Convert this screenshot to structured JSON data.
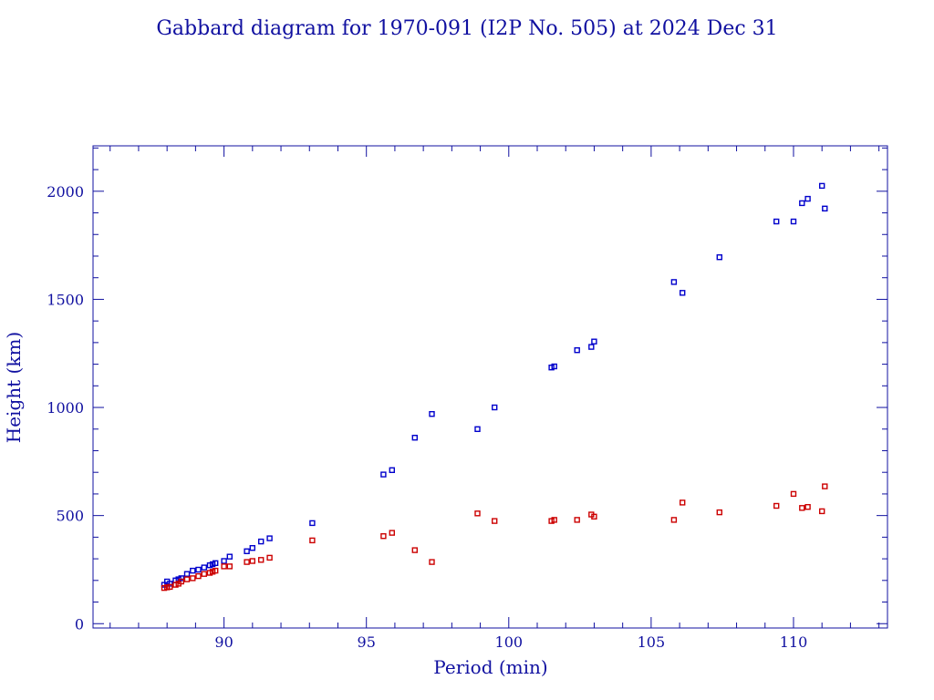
{
  "chart_data": {
    "type": "scatter",
    "title": "Gabbard diagram for 1970-091 (I2P No. 505) at 2024 Dec 31",
    "xlabel": "Period (min)",
    "ylabel": "Height (km)",
    "xlim": [
      85.4,
      113.3
    ],
    "ylim": [
      -20,
      2210
    ],
    "x_major_ticks": [
      90,
      95,
      100,
      105,
      110
    ],
    "x_minor_step": 1,
    "y_major_ticks": [
      0,
      500,
      1000,
      1500,
      2000
    ],
    "y_minor_step": 100,
    "grid": false,
    "series": [
      {
        "role": "apogee",
        "color": "#0000cc",
        "x": [
          87.9,
          88.0,
          88.1,
          88.3,
          88.4,
          88.5,
          88.7,
          88.9,
          89.1,
          89.3,
          89.5,
          89.6,
          89.7,
          90.0,
          90.2,
          90.8,
          91.0,
          91.3,
          91.6,
          93.1,
          95.6,
          95.9,
          96.7,
          97.3,
          98.9,
          99.5,
          101.5,
          101.6,
          102.4,
          102.9,
          103.0,
          105.8,
          106.1,
          107.4,
          109.4,
          110.0,
          110.3,
          110.5,
          111.0,
          111.1
        ],
        "y": [
          180,
          195,
          185,
          200,
          205,
          210,
          230,
          245,
          250,
          260,
          270,
          275,
          280,
          290,
          310,
          335,
          350,
          380,
          395,
          465,
          690,
          710,
          860,
          970,
          900,
          1000,
          1185,
          1190,
          1265,
          1280,
          1305,
          1580,
          1530,
          1695,
          1860,
          1860,
          1945,
          1965,
          2025,
          1920
        ]
      },
      {
        "role": "perigee",
        "color": "#cc0000",
        "x": [
          87.9,
          88.0,
          88.1,
          88.3,
          88.4,
          88.5,
          88.7,
          88.9,
          89.1,
          89.3,
          89.5,
          89.6,
          89.7,
          90.0,
          90.2,
          90.8,
          91.0,
          91.3,
          91.6,
          93.1,
          95.6,
          95.9,
          96.7,
          97.3,
          98.9,
          99.5,
          101.5,
          101.6,
          102.4,
          102.9,
          103.0,
          105.8,
          106.1,
          107.4,
          109.4,
          110.0,
          110.3,
          110.5,
          111.0,
          111.1
        ],
        "y": [
          165,
          168,
          170,
          180,
          185,
          195,
          205,
          210,
          220,
          230,
          235,
          240,
          245,
          265,
          265,
          285,
          290,
          295,
          305,
          385,
          405,
          420,
          340,
          285,
          510,
          475,
          475,
          480,
          480,
          505,
          495,
          480,
          560,
          515,
          545,
          600,
          535,
          540,
          520,
          635
        ]
      }
    ]
  }
}
